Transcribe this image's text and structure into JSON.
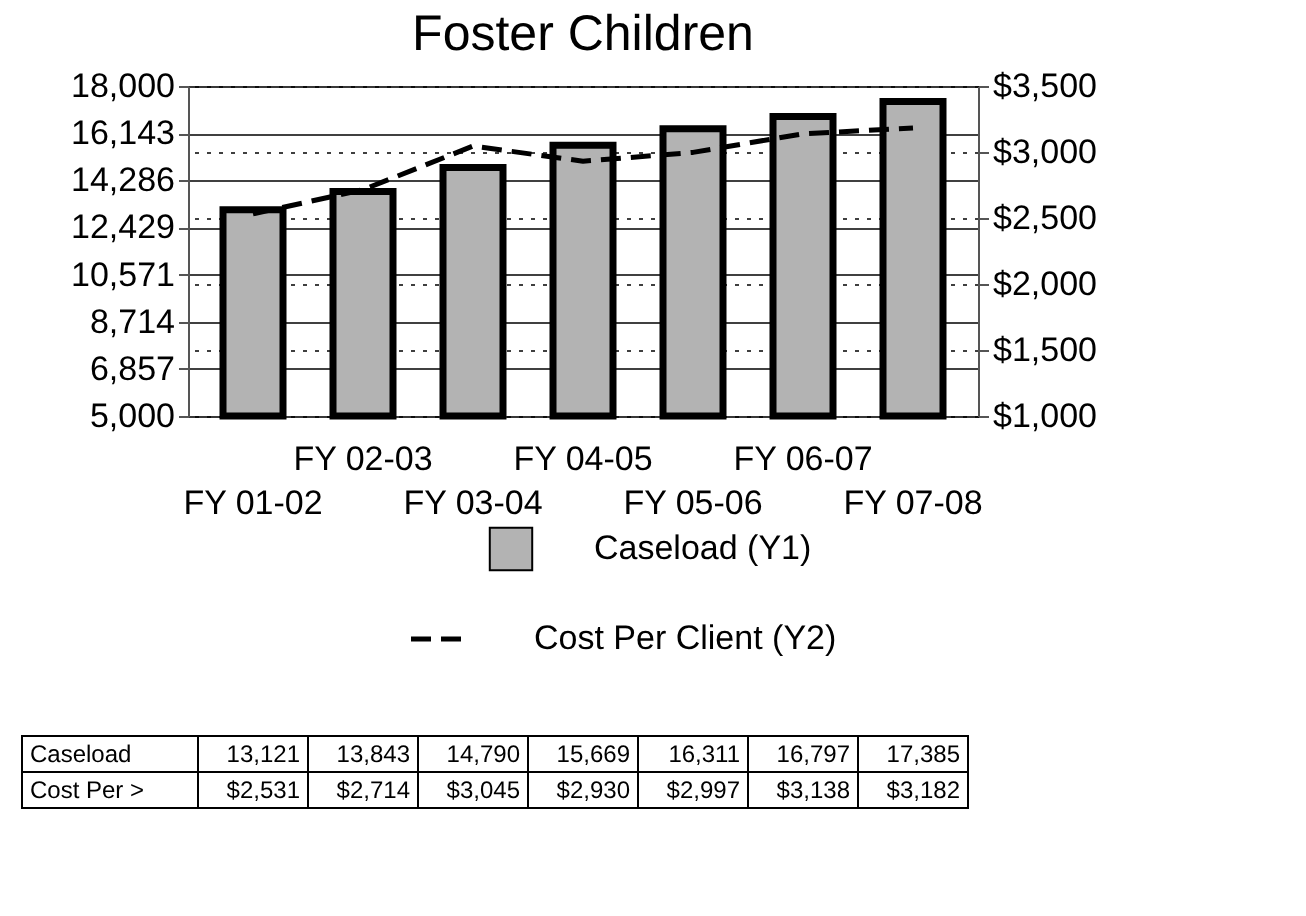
{
  "chart_data": {
    "type": "bar",
    "title": "Foster Children",
    "categories": [
      "FY 01-02",
      "FY 02-03",
      "FY 03-04",
      "FY 04-05",
      "FY 05-06",
      "FY 06-07",
      "FY 07-08"
    ],
    "series": [
      {
        "name": "Caseload (Y1)",
        "color": "#b3b3b3",
        "values": [
          13121,
          13843,
          14790,
          15669,
          16311,
          16797,
          17385
        ],
        "value_labels": [
          "13,121",
          "13,843",
          "14,790",
          "15,669",
          "16,311",
          "16,797",
          "17,385"
        ]
      },
      {
        "name": "Cost Per Client (Y2)",
        "type": "line",
        "axis": "y2",
        "color": "#000000",
        "line_style": "dashed",
        "marker": "none",
        "values": [
          2531,
          2714,
          3045,
          2930,
          2997,
          3138,
          3182
        ],
        "value_labels": [
          "$2,531",
          "$2,714",
          "$3,045",
          "$2,930",
          "$2,997",
          "$3,138",
          "$3,182"
        ]
      }
    ],
    "ylim": [
      5000,
      18000
    ],
    "yticks": [
      {
        "value": 5000,
        "label": "5,000"
      },
      {
        "value": 6857,
        "label": "6,857"
      },
      {
        "value": 8714,
        "label": "8,714"
      },
      {
        "value": 10571,
        "label": "10,571"
      },
      {
        "value": 12429,
        "label": "12,429"
      },
      {
        "value": 14286,
        "label": "14,286"
      },
      {
        "value": 16143,
        "label": "16,143"
      },
      {
        "value": 18000,
        "label": "18,000"
      }
    ],
    "y2lim": [
      1000,
      3500
    ],
    "y2ticks": [
      {
        "value": 1000,
        "label": "$1,000"
      },
      {
        "value": 1500,
        "label": "$1,500"
      },
      {
        "value": 2000,
        "label": "$2,000"
      },
      {
        "value": 2500,
        "label": "$2,500"
      },
      {
        "value": 3000,
        "label": "$3,000"
      },
      {
        "value": 3500,
        "label": "$3,500"
      }
    ],
    "grid": true,
    "legend": "bottom",
    "annotations": [
      "Caseload",
      "Cost Per >"
    ]
  }
}
